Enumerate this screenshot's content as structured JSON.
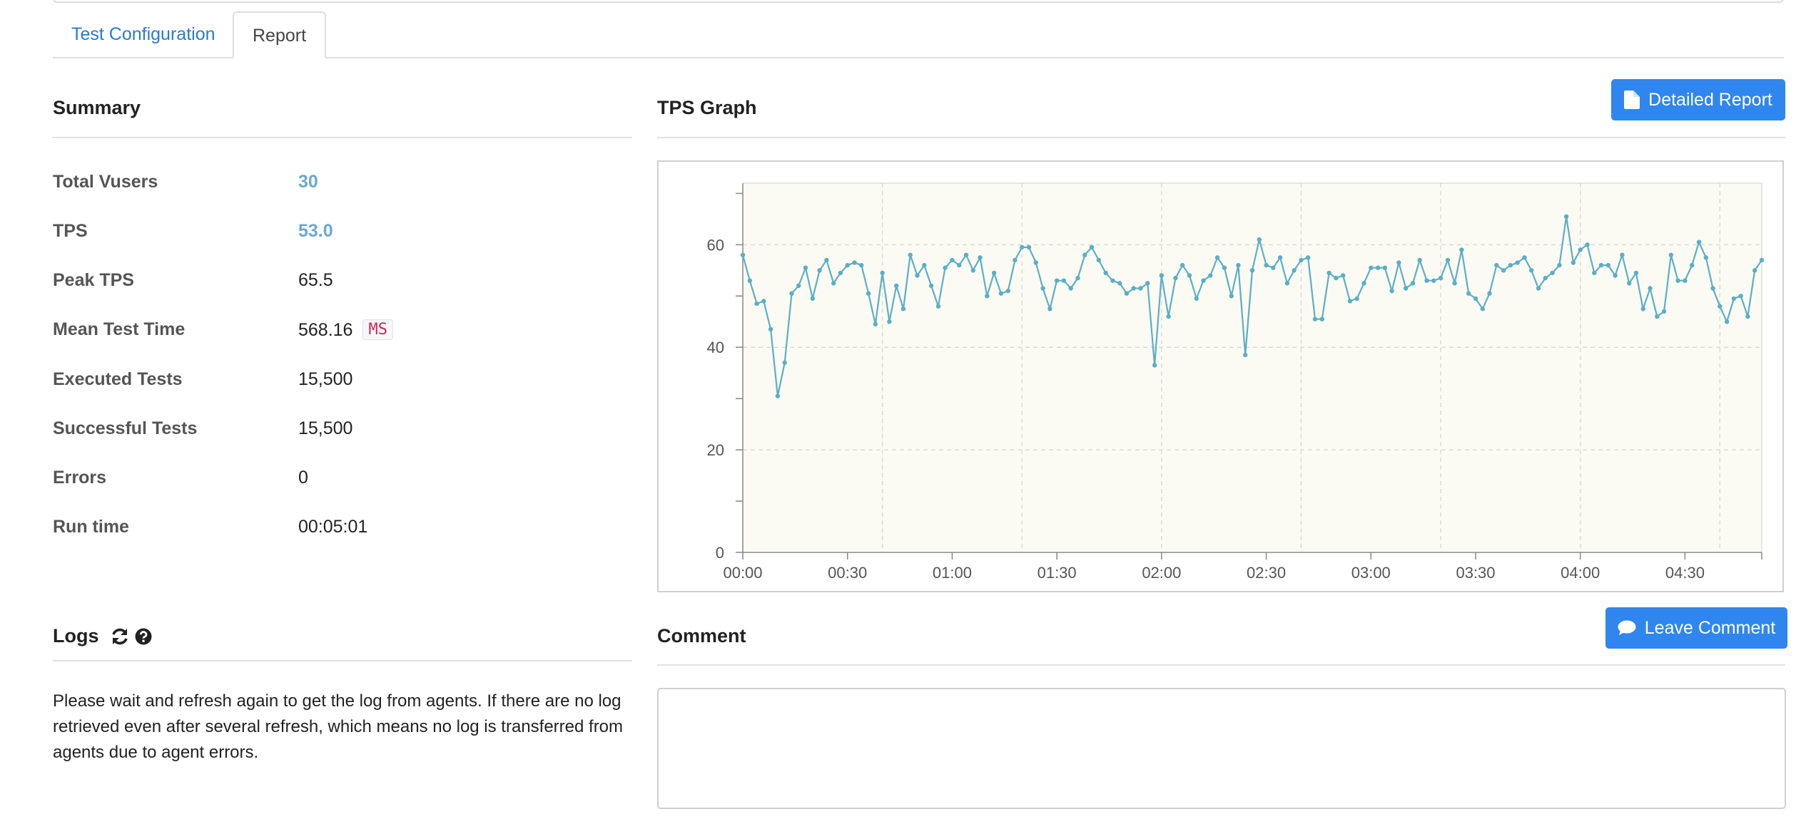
{
  "tabs": [
    {
      "label": "Test Configuration",
      "active": false
    },
    {
      "label": "Report",
      "active": true
    }
  ],
  "summary": {
    "title": "Summary",
    "rows": [
      {
        "label": "Total Vusers",
        "value": "30"
      },
      {
        "label": "TPS",
        "value": "53.0"
      },
      {
        "label": "Peak TPS",
        "value": "65.5"
      },
      {
        "label": "Mean Test Time",
        "value": "568.16",
        "unit": "MS"
      },
      {
        "label": "Executed Tests",
        "value": "15,500"
      },
      {
        "label": "Successful Tests",
        "value": "15,500"
      },
      {
        "label": "Errors",
        "value": "0"
      },
      {
        "label": "Run time",
        "value": "00:05:01"
      }
    ]
  },
  "tps_graph": {
    "title": "TPS Graph",
    "detailed_report_label": "Detailed Report"
  },
  "logs": {
    "title": "Logs",
    "refresh_icon": "refresh-icon",
    "help_icon": "question-circle-icon",
    "message": "Please wait and refresh again to get the log from agents. If there are no log retrieved even after several refresh, which means no log is transferred from agents due to agent errors."
  },
  "comment": {
    "title": "Comment",
    "leave_comment_label": "Leave Comment",
    "value": ""
  },
  "colors": {
    "accent": "#2f86ee",
    "link": "#2a7ad2",
    "value_link": "#6ba8cf",
    "series": "#5aafc6",
    "plot_bg": "#fcfbf3"
  },
  "chart_data": {
    "type": "line",
    "xlabel": "",
    "ylabel": "",
    "x_unit": "seconds",
    "x_range": [
      0,
      292
    ],
    "ylim": [
      0,
      72
    ],
    "x_ticks": [
      "00:00",
      "00:30",
      "01:00",
      "01:30",
      "02:00",
      "02:30",
      "03:00",
      "03:30",
      "04:00",
      "04:30"
    ],
    "y_ticks": [
      "0",
      "20",
      "40",
      "60"
    ],
    "grid": true,
    "legend": "none",
    "interval_seconds": 2,
    "series": [
      {
        "values": [
          58,
          53,
          48.5,
          49,
          43.5,
          30.5,
          37,
          50.5,
          52,
          55.5,
          49.5,
          55,
          57,
          52.5,
          54.5,
          56,
          56.5,
          56,
          50.5,
          44.5,
          54.5,
          45,
          52,
          47.5,
          58,
          54,
          56,
          52,
          48,
          55.5,
          57,
          56,
          58,
          55,
          57.5,
          50,
          54.5,
          50.5,
          51,
          57,
          59.5,
          59.5,
          56.5,
          51.5,
          47.5,
          53,
          53,
          51.5,
          53.5,
          58,
          59.5,
          57,
          54.5,
          53,
          52.5,
          50.5,
          51.5,
          51.5,
          52.5,
          36.5,
          54,
          46,
          53.5,
          56,
          54,
          49.5,
          53,
          54,
          57.5,
          55.5,
          50,
          56,
          38.5,
          55,
          61,
          56,
          55.5,
          57.5,
          52.5,
          55,
          57,
          57.5,
          45.5,
          45.5,
          54.5,
          53.5,
          54,
          49,
          49.5,
          52.5,
          55.5,
          55.5,
          55.5,
          51,
          56.5,
          51.5,
          52.5,
          57,
          53,
          53,
          53.5,
          57,
          52.5,
          59,
          50.5,
          49.5,
          47.5,
          50.5,
          56,
          55,
          56,
          56.5,
          57.5,
          55,
          51.5,
          53.5,
          54.5,
          56,
          65.5,
          56.5,
          59,
          60,
          54.5,
          56,
          56,
          54,
          58,
          52.5,
          54.5,
          47.5,
          51.5,
          46,
          47,
          58,
          53,
          53,
          56,
          60.5,
          57.5,
          51.5,
          48,
          45,
          49.5,
          50,
          46,
          55,
          57
        ]
      }
    ]
  }
}
